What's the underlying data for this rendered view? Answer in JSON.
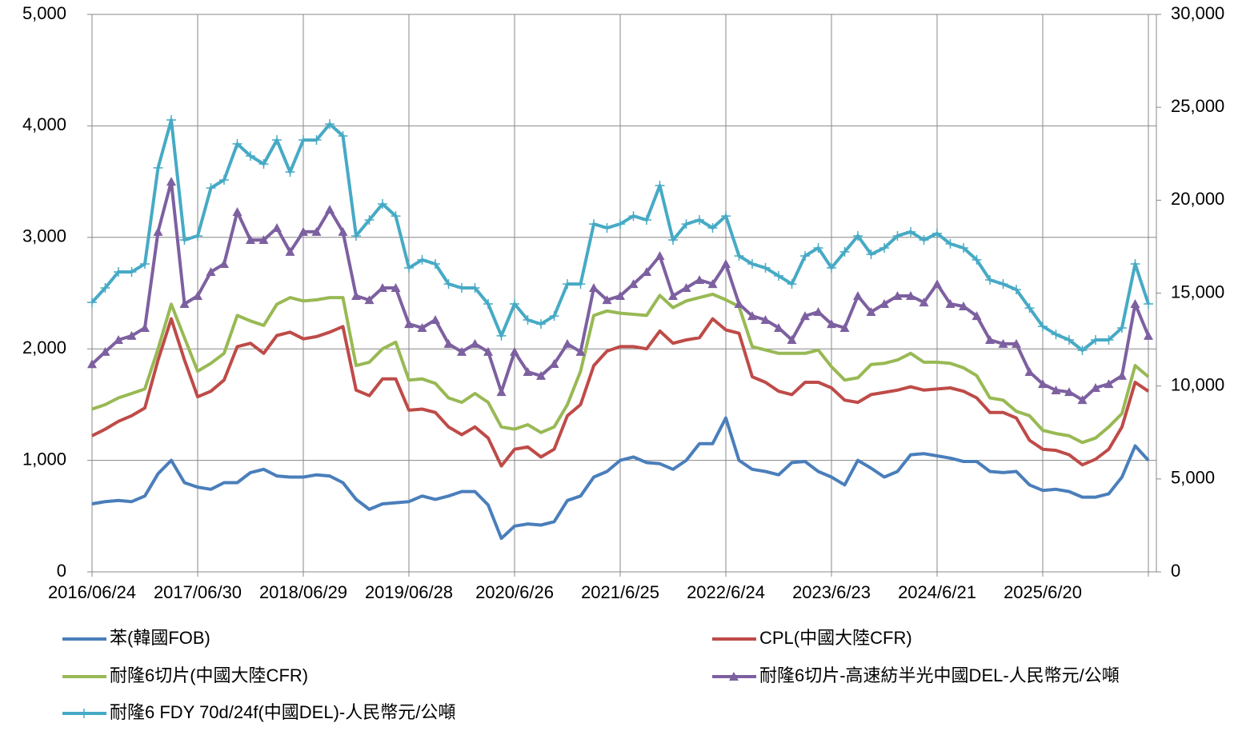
{
  "chart_data": {
    "type": "line",
    "categories": [
      "2016/06/24",
      null,
      null,
      null,
      null,
      null,
      null,
      null,
      "2017/06/30",
      null,
      null,
      null,
      null,
      null,
      null,
      null,
      "2018/06/29",
      null,
      null,
      null,
      null,
      null,
      null,
      null,
      "2019/06/28",
      null,
      null,
      null,
      null,
      null,
      null,
      null,
      "2020/6/26",
      null,
      null,
      null,
      null,
      null,
      null,
      null,
      "2021/6/25",
      null,
      null,
      null,
      null,
      null,
      null,
      null,
      "2022/6/24",
      null,
      null,
      null,
      null,
      null,
      null,
      null,
      "2023/6/23",
      null,
      null,
      null,
      null,
      null,
      null,
      null,
      "2024/6/21",
      null,
      null,
      null,
      null,
      null,
      null,
      null,
      "2025/6/20",
      null,
      null,
      null,
      null,
      null,
      null,
      null,
      null
    ],
    "ylim": [
      0,
      5000
    ],
    "yticks": [
      0,
      {
        "value": 1000,
        "label": "1,000"
      },
      {
        "value": 2000,
        "label": "2,000"
      },
      {
        "value": 3000,
        "label": "3,000"
      },
      {
        "value": 4000,
        "label": "4,000"
      },
      {
        "value": 5000,
        "label": "5,000"
      }
    ],
    "y2lim": [
      0,
      30000
    ],
    "y2ticks": [
      0,
      {
        "value": 5000,
        "label": "5,000"
      },
      {
        "value": 10000,
        "label": "10,000"
      },
      {
        "value": 15000,
        "label": "15,000"
      },
      {
        "value": 20000,
        "label": "20,000"
      },
      {
        "value": 25000,
        "label": "25,000"
      },
      {
        "value": 30000,
        "label": "30,000"
      }
    ],
    "grid": true,
    "legend": "bottom",
    "series": [
      {
        "name": "苯(韓國FOB)",
        "color": "#4a7ebb",
        "marker": "none",
        "values": [
          610,
          630,
          640,
          630,
          680,
          880,
          1000,
          800,
          760,
          740,
          800,
          800,
          890,
          920,
          860,
          850,
          850,
          870,
          860,
          800,
          650,
          560,
          610,
          620,
          630,
          680,
          650,
          680,
          720,
          720,
          600,
          300,
          410,
          430,
          420,
          450,
          640,
          680,
          850,
          900,
          1000,
          1030,
          980,
          970,
          920,
          1000,
          1150,
          1150,
          1380,
          1000,
          920,
          900,
          870,
          980,
          990,
          900,
          850,
          780,
          1000,
          930,
          850,
          900,
          1050,
          1060,
          1040,
          1020,
          990,
          990,
          900,
          890,
          900,
          780,
          730,
          740,
          720,
          670,
          670,
          700,
          850,
          1130,
          1000
        ]
      },
      {
        "name": "CPL(中國大陸CFR)",
        "color": "#be4b48",
        "marker": "none",
        "values": [
          1220,
          1280,
          1350,
          1400,
          1470,
          1900,
          2270,
          1900,
          1570,
          1620,
          1720,
          2020,
          2050,
          1960,
          2120,
          2150,
          2090,
          2110,
          2150,
          2200,
          1630,
          1580,
          1730,
          1730,
          1450,
          1460,
          1430,
          1300,
          1230,
          1300,
          1200,
          950,
          1100,
          1120,
          1030,
          1100,
          1400,
          1500,
          1850,
          1980,
          2020,
          2020,
          2000,
          2160,
          2050,
          2080,
          2100,
          2270,
          2170,
          2140,
          1750,
          1700,
          1620,
          1590,
          1700,
          1700,
          1650,
          1540,
          1520,
          1590,
          1610,
          1630,
          1660,
          1630,
          1640,
          1650,
          1620,
          1560,
          1430,
          1430,
          1380,
          1180,
          1100,
          1090,
          1050,
          960,
          1010,
          1100,
          1300,
          1700,
          1620
        ]
      },
      {
        "name": "耐隆6切片(中國大陸CFR)",
        "color": "#98b954",
        "marker": "none",
        "values": [
          1460,
          1500,
          1560,
          1600,
          1640,
          2000,
          2400,
          2100,
          1800,
          1870,
          1960,
          2300,
          2250,
          2210,
          2400,
          2460,
          2430,
          2440,
          2460,
          2460,
          1850,
          1880,
          2000,
          2060,
          1720,
          1730,
          1690,
          1560,
          1520,
          1600,
          1520,
          1300,
          1280,
          1320,
          1250,
          1300,
          1500,
          1800,
          2300,
          2340,
          2320,
          2310,
          2300,
          2480,
          2370,
          2430,
          2460,
          2490,
          2440,
          2380,
          2020,
          1990,
          1960,
          1960,
          1960,
          1990,
          1840,
          1720,
          1740,
          1860,
          1870,
          1900,
          1960,
          1880,
          1880,
          1870,
          1830,
          1760,
          1560,
          1540,
          1440,
          1400,
          1270,
          1240,
          1220,
          1160,
          1200,
          1300,
          1420,
          1850,
          1750
        ]
      },
      {
        "name": "耐隆6切片-高速紡半光中國DEL-人民幣元/公噸",
        "color": "#7d60a0",
        "marker": "triangle",
        "axis": "y2",
        "values": [
          11180,
          11840,
          12480,
          12700,
          13130,
          18300,
          21000,
          14420,
          14850,
          16140,
          16570,
          19370,
          17860,
          17860,
          18510,
          17220,
          18300,
          18300,
          19500,
          18300,
          14850,
          14630,
          15280,
          15280,
          13340,
          13130,
          13560,
          12270,
          11840,
          12270,
          11840,
          9680,
          11840,
          10760,
          10550,
          11190,
          12270,
          11840,
          15280,
          14630,
          14850,
          15490,
          16140,
          17000,
          14850,
          15280,
          15710,
          15490,
          16570,
          14420,
          13770,
          13560,
          13130,
          12480,
          13770,
          13990,
          13340,
          13130,
          14850,
          13990,
          14420,
          14850,
          14850,
          14500,
          15490,
          14420,
          14290,
          13770,
          12480,
          12270,
          12270,
          10760,
          10110,
          9770,
          9680,
          9250,
          9900,
          10110,
          10550,
          14420,
          12700
        ]
      },
      {
        "name": "耐隆6 FDY 70d/24f(中國DEL)-人民幣元/公噸",
        "color": "#46aac5",
        "marker": "plus",
        "axis": "y2",
        "values": [
          14500,
          15280,
          16140,
          16140,
          16570,
          21740,
          24320,
          17860,
          18080,
          20660,
          21090,
          23030,
          22380,
          21950,
          23240,
          21520,
          23240,
          23240,
          24100,
          23460,
          18080,
          18940,
          19800,
          19150,
          16360,
          16790,
          16570,
          15490,
          15280,
          15280,
          14420,
          12700,
          14420,
          13560,
          13340,
          13770,
          15490,
          15490,
          18720,
          18510,
          18720,
          19150,
          18940,
          20790,
          17860,
          18720,
          18940,
          18510,
          19150,
          17000,
          16570,
          16360,
          15930,
          15490,
          17000,
          17430,
          16360,
          17220,
          18080,
          17090,
          17430,
          18080,
          18300,
          17860,
          18210,
          17650,
          17430,
          16790,
          15710,
          15490,
          15190,
          14200,
          13210,
          12780,
          12480,
          11920,
          12480,
          12480,
          13130,
          16570,
          14420
        ]
      }
    ]
  }
}
